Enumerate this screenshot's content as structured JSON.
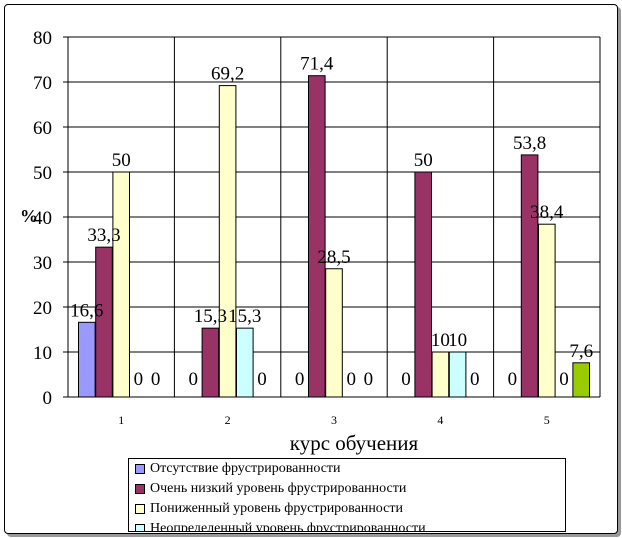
{
  "chart_data": {
    "type": "bar",
    "categories": [
      "1",
      "2",
      "3",
      "4",
      "5"
    ],
    "series": [
      {
        "name": "Отсутствие фрустрированности",
        "color": "#9999ff",
        "values": [
          16.6,
          0,
          0,
          0,
          0
        ],
        "labels": [
          "16,6",
          "0",
          "0",
          "0",
          "0"
        ]
      },
      {
        "name": "Очень низкий уровень фрустрированности",
        "color": "#993366",
        "values": [
          33.3,
          15.3,
          71.4,
          50,
          53.8
        ],
        "labels": [
          "33,3",
          "15,3",
          "71,4",
          "50",
          "53,8"
        ]
      },
      {
        "name": "Пониженный уровень фрустрированности",
        "color": "#ffffcc",
        "values": [
          50,
          69.2,
          28.5,
          10,
          38.4
        ],
        "labels": [
          "50",
          "69,2",
          "28,5",
          "10",
          "38,4"
        ]
      },
      {
        "name": "Неопределенный уровень фрустрированности",
        "color": "#ccffff",
        "values": [
          0,
          15.3,
          0,
          10,
          0
        ],
        "labels": [
          "0",
          "15,3",
          "0",
          "10",
          "0"
        ]
      },
      {
        "color": "#99cc00",
        "values": [
          0,
          0,
          0,
          0,
          7.6
        ],
        "labels": [
          "0",
          "0",
          "0",
          "0",
          "7,6"
        ]
      }
    ],
    "xlabel": "курс обучения",
    "ylabel": "%",
    "ylim": [
      0,
      80
    ],
    "yticks": [
      "0",
      "10",
      "20",
      "30",
      "40",
      "50",
      "60",
      "70",
      "80"
    ],
    "grid": true,
    "legend_position": "bottom"
  }
}
